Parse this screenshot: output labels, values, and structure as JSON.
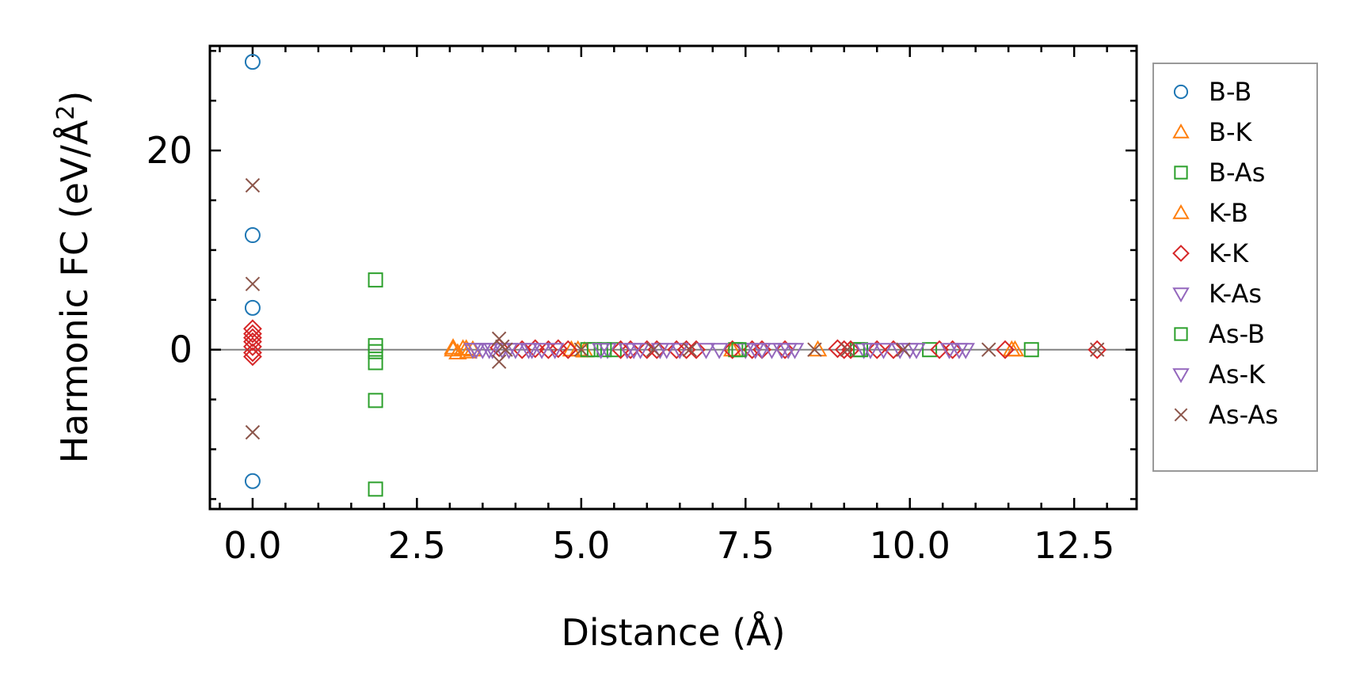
{
  "chart_data": {
    "type": "scatter",
    "xlabel": "Distance (Å)",
    "ylabel": "Harmonic FC (eV/Å",
    "ylabel_sup": "2",
    "ylabel_close": ")",
    "xlim": [
      -0.65,
      13.45
    ],
    "ylim": [
      -16.0,
      30.5
    ],
    "xticks": [
      0.0,
      2.5,
      5.0,
      7.5,
      10.0,
      12.5
    ],
    "xtick_labels": [
      "0.0",
      "2.5",
      "5.0",
      "7.5",
      "10.0",
      "12.5"
    ],
    "yticks": [
      0,
      20
    ],
    "ytick_labels": [
      "0",
      "20"
    ],
    "x_minor_step": 0.5,
    "y_minor_step": 5,
    "zero_line": true,
    "legend_position": "outside-right",
    "series": [
      {
        "name": "B-B",
        "marker": "circle",
        "color": "#1f77b4",
        "points": [
          [
            0,
            28.9
          ],
          [
            0,
            11.5
          ],
          [
            0,
            4.2
          ],
          [
            0,
            -13.2
          ]
        ]
      },
      {
        "name": "B-K",
        "marker": "triangle-up",
        "color": "#ff7f0e",
        "points": [
          [
            3.05,
            0
          ],
          [
            3.12,
            -0.3
          ],
          [
            3.2,
            0.1
          ],
          [
            3.28,
            -0.2
          ],
          [
            3.35,
            0
          ],
          [
            4.95,
            0
          ],
          [
            5.05,
            -0.1
          ],
          [
            7.3,
            0
          ],
          [
            8.6,
            0
          ],
          [
            11.55,
            0
          ]
        ]
      },
      {
        "name": "B-As",
        "marker": "square",
        "color": "#2ca02c",
        "points": [
          [
            1.87,
            7.0
          ],
          [
            1.87,
            0.4
          ],
          [
            1.87,
            -0.2
          ],
          [
            1.87,
            -1.3
          ],
          [
            1.87,
            -5.1
          ],
          [
            1.87,
            -14.0
          ],
          [
            5.2,
            0
          ],
          [
            5.5,
            0
          ],
          [
            7.35,
            0
          ],
          [
            9.2,
            0
          ],
          [
            10.3,
            0
          ]
        ]
      },
      {
        "name": "K-B",
        "marker": "triangle-up",
        "color": "#ff7f0e",
        "points": [
          [
            3.05,
            0.2
          ],
          [
            3.25,
            0.1
          ],
          [
            4.85,
            0
          ],
          [
            11.6,
            0
          ]
        ]
      },
      {
        "name": "K-K",
        "marker": "diamond",
        "color": "#d62728",
        "points": [
          [
            0,
            2.1
          ],
          [
            0,
            1.6
          ],
          [
            0,
            1.2
          ],
          [
            0,
            0.8
          ],
          [
            0,
            0.3
          ],
          [
            0,
            -0.3
          ],
          [
            0,
            -0.7
          ],
          [
            3.75,
            0.2
          ],
          [
            4.1,
            0
          ],
          [
            4.3,
            0.1
          ],
          [
            4.5,
            0
          ],
          [
            4.65,
            0.1
          ],
          [
            4.8,
            0
          ],
          [
            5.6,
            0
          ],
          [
            5.75,
            0
          ],
          [
            6.0,
            0
          ],
          [
            6.15,
            0
          ],
          [
            6.45,
            0
          ],
          [
            6.6,
            0
          ],
          [
            6.75,
            0
          ],
          [
            7.3,
            0
          ],
          [
            7.6,
            0
          ],
          [
            7.75,
            0
          ],
          [
            8.1,
            0
          ],
          [
            8.9,
            0.1
          ],
          [
            9.0,
            0
          ],
          [
            9.1,
            0
          ],
          [
            9.5,
            0
          ],
          [
            9.75,
            0
          ],
          [
            10.45,
            0
          ],
          [
            10.65,
            0
          ],
          [
            11.45,
            0
          ],
          [
            12.85,
            0
          ]
        ]
      },
      {
        "name": "K-As",
        "marker": "triangle-down",
        "color": "#9467bd",
        "points": [
          [
            3.35,
            0
          ],
          [
            3.5,
            0
          ],
          [
            3.65,
            0
          ],
          [
            3.8,
            0
          ],
          [
            4.0,
            0
          ],
          [
            4.2,
            0
          ],
          [
            4.4,
            0
          ],
          [
            4.6,
            0
          ],
          [
            5.4,
            0
          ],
          [
            5.7,
            0
          ],
          [
            5.9,
            0
          ],
          [
            6.2,
            0
          ],
          [
            6.5,
            0
          ],
          [
            6.9,
            0
          ],
          [
            7.5,
            0
          ],
          [
            7.75,
            0
          ],
          [
            7.9,
            0
          ],
          [
            8.05,
            0
          ],
          [
            8.25,
            0
          ],
          [
            9.3,
            0
          ],
          [
            9.6,
            0
          ],
          [
            9.85,
            0
          ],
          [
            10.0,
            0
          ],
          [
            10.6,
            0
          ],
          [
            10.85,
            0
          ]
        ]
      },
      {
        "name": "As-B",
        "marker": "square",
        "color": "#2ca02c",
        "points": [
          [
            5.1,
            0
          ],
          [
            5.35,
            0
          ],
          [
            7.4,
            0
          ],
          [
            9.25,
            0
          ],
          [
            11.85,
            0
          ]
        ]
      },
      {
        "name": "As-K",
        "marker": "triangle-down",
        "color": "#9467bd",
        "points": [
          [
            3.4,
            0
          ],
          [
            3.6,
            0
          ],
          [
            3.9,
            0
          ],
          [
            4.25,
            0
          ],
          [
            5.3,
            0
          ],
          [
            5.8,
            0
          ],
          [
            6.3,
            0
          ],
          [
            7.1,
            0
          ],
          [
            7.65,
            0
          ],
          [
            8.15,
            0
          ],
          [
            9.4,
            0
          ],
          [
            10.1,
            0
          ],
          [
            10.75,
            0
          ]
        ]
      },
      {
        "name": "As-As",
        "marker": "x",
        "color": "#8c564b",
        "points": [
          [
            0,
            16.5
          ],
          [
            0,
            6.6
          ],
          [
            0,
            -8.3
          ],
          [
            3.75,
            1.1
          ],
          [
            3.75,
            -1.2
          ],
          [
            3.8,
            0.3
          ],
          [
            3.85,
            0
          ],
          [
            5.0,
            0
          ],
          [
            6.1,
            0
          ],
          [
            6.65,
            0
          ],
          [
            8.55,
            0
          ],
          [
            9.05,
            0
          ],
          [
            9.9,
            0
          ],
          [
            11.2,
            0
          ],
          [
            12.85,
            0
          ]
        ]
      }
    ]
  }
}
